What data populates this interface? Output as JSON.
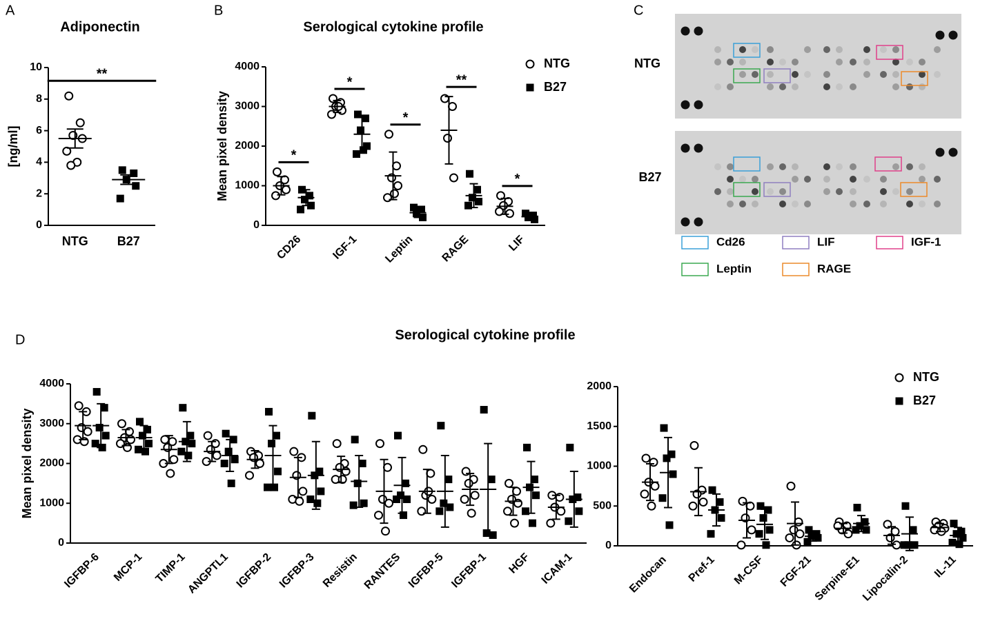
{
  "panel_labels": [
    "A",
    "B",
    "C",
    "D"
  ],
  "blot": {
    "rows": [
      "NTG",
      "B27"
    ],
    "legend": [
      {
        "name": "Cd26",
        "color": "#3aa0d8"
      },
      {
        "name": "LIF",
        "color": "#8f7fc0"
      },
      {
        "name": "IGF-1",
        "color": "#e0408a"
      },
      {
        "name": "Leptin",
        "color": "#3aa850"
      },
      {
        "name": "RAGE",
        "color": "#ec8a2a"
      }
    ]
  },
  "chart_data": [
    {
      "type": "dot",
      "title": "Adiponectin",
      "ylabel": "[ng/ml]",
      "categories": [
        "NTG",
        "B27"
      ],
      "markers": [
        "circle",
        "square"
      ],
      "values": [
        [
          8.2,
          6.5,
          5.7,
          5.5,
          4.7,
          4.0,
          3.8
        ],
        [
          3.5,
          3.3,
          2.9,
          2.5,
          1.7
        ]
      ],
      "mean": [
        5.5,
        2.9
      ],
      "error": [
        0.6,
        0.3
      ],
      "significance": "**",
      "ylim": [
        0,
        10
      ],
      "yticks": [
        0,
        2,
        4,
        6,
        8,
        10
      ]
    },
    {
      "type": "dot",
      "title": "Serological cytokine profile",
      "ylabel": "Mean pixel density",
      "categories": [
        "CD26",
        "IGF-1",
        "Leptin",
        "RAGE",
        "LIF"
      ],
      "series": [
        {
          "name": "NTG",
          "marker": "circle",
          "values": [
            [
              1350,
              1150,
              1000,
              900,
              750
            ],
            [
              3200,
              3100,
              3000,
              2900,
              2800,
              3000
            ],
            [
              2300,
              1500,
              1200,
              1000,
              700,
              800
            ],
            [
              3200,
              3000,
              2200,
              1200
            ],
            [
              750,
              600,
              500,
              300,
              350
            ]
          ],
          "mean": [
            1000,
            3000,
            1250,
            2400,
            480
          ],
          "error": [
            230,
            150,
            600,
            850,
            200
          ]
        },
        {
          "name": "B27",
          "marker": "square",
          "values": [
            [
              900,
              750,
              650,
              500,
              400
            ],
            [
              2800,
              2700,
              2400,
              2000,
              1800,
              1900
            ],
            [
              450,
              400,
              300,
              200
            ],
            [
              1300,
              900,
              700,
              600,
              500
            ],
            [
              300,
              250,
              200,
              150
            ]
          ],
          "mean": [
            700,
            2300,
            320,
            750,
            220
          ],
          "error": [
            200,
            450,
            120,
            300,
            70
          ]
        }
      ],
      "significance": [
        "*",
        "*",
        "*",
        "**",
        "*"
      ],
      "legend": true,
      "ylim": [
        0,
        4000
      ],
      "yticks": [
        0,
        1000,
        2000,
        3000,
        4000
      ]
    },
    {
      "type": "dot",
      "title": "Serological cytokine profile",
      "ylabel": "Mean pixel density",
      "categories": [
        "IGFBP-6",
        "MCP-1",
        "TIMP-1",
        "ANGPTL1",
        "IGFBP-2",
        "IGFBP-3",
        "Resistin",
        "RANTES",
        "IGFBP-5",
        "IGFBP-1",
        "HGF",
        "ICAM-1"
      ],
      "series": [
        {
          "name": "NTG",
          "marker": "circle",
          "values": [
            [
              3450,
              3300,
              2900,
              2800,
              2600,
              2550
            ],
            [
              3000,
              2800,
              2650,
              2600,
              2500,
              2400
            ],
            [
              2600,
              2550,
              2400,
              2100,
              2000,
              1750
            ],
            [
              2700,
              2500,
              2350,
              2200,
              2050
            ],
            [
              2300,
              2200,
              2150,
              2000,
              1700
            ],
            [
              2300,
              2150,
              1700,
              1300,
              1100,
              1050
            ],
            [
              2500,
              2000,
              1900,
              1800,
              1600,
              1600
            ],
            [
              2500,
              1900,
              1100,
              1000,
              700,
              300
            ],
            [
              2350,
              1750,
              1200,
              1100,
              800,
              1300
            ],
            [
              1800,
              1600,
              1500,
              1200,
              1100,
              750
            ],
            [
              1500,
              1300,
              1100,
              1000,
              800,
              500
            ],
            [
              1200,
              1150,
              900,
              800,
              500
            ]
          ],
          "mean": [
            2950,
            2650,
            2350,
            2300,
            2100,
            1650,
            1850,
            1300,
            1300,
            1350,
            1050,
            900
          ],
          "error": [
            350,
            200,
            350,
            250,
            220,
            500,
            330,
            800,
            550,
            400,
            350,
            300
          ]
        },
        {
          "name": "B27",
          "marker": "square",
          "values": [
            [
              3800,
              3400,
              2900,
              2700,
              2500,
              2400
            ],
            [
              3050,
              2850,
              2700,
              2500,
              2350,
              2300
            ],
            [
              3400,
              2700,
              2550,
              2500,
              2300,
              2200
            ],
            [
              2750,
              2600,
              2300,
              2100,
              2000,
              1500
            ],
            [
              3300,
              2700,
              2500,
              1800,
              1400,
              1400
            ],
            [
              3200,
              1800,
              1700,
              1300,
              1100,
              1000
            ],
            [
              2600,
              2000,
              1500,
              1000,
              950
            ],
            [
              2700,
              1500,
              1200,
              1100,
              1100,
              700
            ],
            [
              2950,
              1600,
              1000,
              900,
              800
            ],
            [
              3350,
              1600,
              250,
              200
            ],
            [
              2400,
              1600,
              1400,
              1200,
              800,
              500
            ],
            [
              2400,
              1150,
              1100,
              800,
              550
            ]
          ],
          "mean": [
            2950,
            2650,
            2550,
            2200,
            2200,
            1700,
            1550,
            1450,
            1300,
            1350,
            1400,
            1100
          ],
          "error": [
            550,
            300,
            500,
            400,
            750,
            850,
            650,
            700,
            900,
            1150,
            650,
            700
          ]
        }
      ],
      "legend": false,
      "ylim": [
        0,
        4000
      ],
      "yticks": [
        0,
        1000,
        2000,
        3000,
        4000
      ]
    },
    {
      "type": "dot",
      "categories": [
        "Endocan",
        "Pref-1",
        "M-CSF",
        "FGF-21",
        "Serpine-E1",
        "Lipocalin-2",
        "IL-11"
      ],
      "series": [
        {
          "name": "NTG",
          "marker": "circle",
          "values": [
            [
              1100,
              1050,
              800,
              750,
              650,
              500
            ],
            [
              1260,
              700,
              650,
              550,
              500
            ],
            [
              560,
              500,
              350,
              200,
              10
            ],
            [
              750,
              300,
              200,
              150,
              100,
              10
            ],
            [
              300,
              250,
              200,
              150,
              250
            ],
            [
              270,
              180,
              100,
              10
            ],
            [
              300,
              280,
              250,
              220,
              200,
              180
            ]
          ],
          "mean": [
            800,
            680,
            320,
            280,
            220,
            130,
            230
          ],
          "error": [
            230,
            300,
            220,
            270,
            60,
            110,
            50
          ]
        },
        {
          "name": "B27",
          "marker": "square",
          "values": [
            [
              1480,
              1150,
              1100,
              900,
              600,
              260
            ],
            [
              700,
              550,
              450,
              350,
              150
            ],
            [
              500,
              450,
              350,
              200,
              150,
              10
            ],
            [
              200,
              150,
              120,
              100,
              50
            ],
            [
              480,
              300,
              250,
              200,
              200
            ],
            [
              500,
              200,
              10,
              10,
              10
            ],
            [
              280,
              180,
              150,
              100,
              40,
              20
            ]
          ],
          "mean": [
            920,
            450,
            270,
            120,
            280,
            150,
            130
          ],
          "error": [
            440,
            200,
            190,
            60,
            100,
            210,
            100
          ]
        }
      ],
      "legend": true,
      "ylim": [
        0,
        2000
      ],
      "yticks": [
        0,
        500,
        1000,
        1500,
        2000
      ]
    }
  ]
}
